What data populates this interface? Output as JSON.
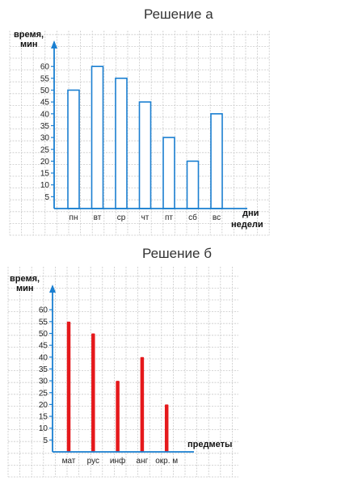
{
  "headings": {
    "a": "Решение а",
    "b": "Решение б"
  },
  "chart_data": [
    {
      "type": "bar",
      "style": "outlined",
      "bar_color": "#1a7fd1",
      "axis_color": "#1a7fd1",
      "grid": true,
      "ylabel": "время, мин",
      "xlabel": "дни недели",
      "ylabel_lines": [
        "время,",
        "мин"
      ],
      "xlabel_lines": [
        "дни",
        "недели"
      ],
      "yticks": [
        5,
        10,
        15,
        20,
        25,
        30,
        35,
        40,
        45,
        50,
        55,
        60
      ],
      "categories": [
        "пн",
        "вт",
        "ср",
        "чт",
        "пт",
        "сб",
        "вс"
      ],
      "values": [
        50,
        60,
        55,
        45,
        30,
        20,
        40
      ]
    },
    {
      "type": "bar",
      "style": "thin-line",
      "bar_color": "#e5191c",
      "axis_color": "#1a7fd1",
      "grid": true,
      "ylabel": "время, мин",
      "xlabel": "предметы",
      "ylabel_lines": [
        "время,",
        "мин"
      ],
      "xlabel_lines": [
        "предметы"
      ],
      "yticks": [
        5,
        10,
        15,
        20,
        25,
        30,
        35,
        40,
        45,
        50,
        55,
        60
      ],
      "categories": [
        "мат",
        "рус",
        "инф",
        "анг",
        "окр. м"
      ],
      "values": [
        55,
        50,
        30,
        40,
        20
      ]
    }
  ]
}
